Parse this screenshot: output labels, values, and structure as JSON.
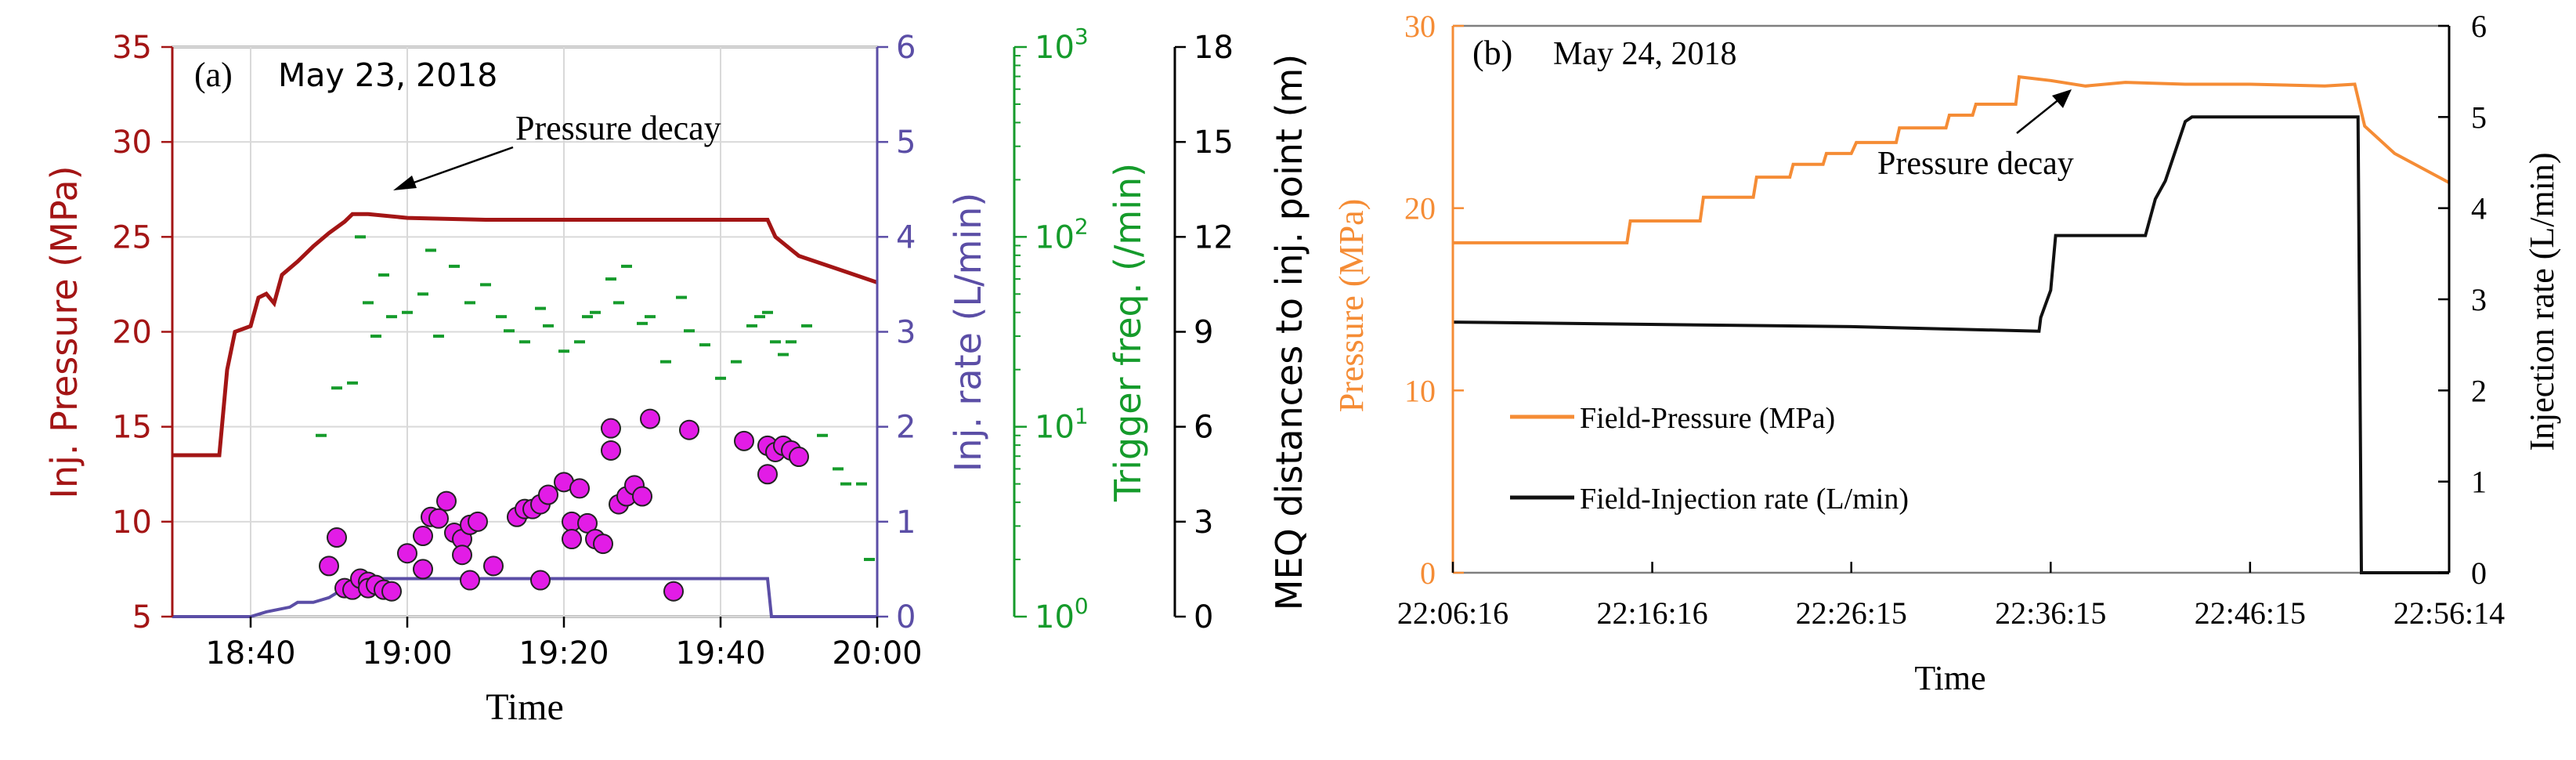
{
  "figure": {
    "panel_a": {
      "panel_label": "(a)",
      "date": "May 23, 2018",
      "annotation": "Pressure decay"
    },
    "panel_b": {
      "panel_label": "(b)",
      "date": "May 24, 2018",
      "annotation": "Pressure decay"
    }
  },
  "colors": {
    "pressure_a": "#a31515",
    "injection_a": "#5b4ea6",
    "trigger": "#159b2b",
    "meq_fill": "#e21ce6",
    "pressure_b": "#f58c35",
    "injection_b": "#111111"
  },
  "chart_data": [
    {
      "type": "line",
      "panel": "a",
      "xlabel": "Time",
      "x_ticks": [
        "18:40",
        "19:00",
        "19:20",
        "19:40",
        "20:00"
      ],
      "x_range_minutes": [
        "18:30",
        "20:00"
      ],
      "axes": [
        {
          "label": "Inj. Pressure (MPa)",
          "ylim": [
            5,
            35
          ],
          "ticks": [
            5,
            10,
            15,
            20,
            25,
            30,
            35
          ]
        },
        {
          "label": "Inj. rate (L/min)",
          "ylim": [
            0,
            6
          ],
          "ticks": [
            0,
            1,
            2,
            3,
            4,
            5,
            6
          ]
        },
        {
          "label": "Trigger freq. (/min)",
          "scale": "log",
          "ylim": [
            1,
            1000
          ],
          "ticks": [
            "10^0",
            "10^1",
            "10^2",
            "10^3"
          ]
        },
        {
          "label": "MEQ distances to inj. point (m)",
          "ylim": [
            0,
            18
          ],
          "ticks": [
            0,
            3,
            6,
            9,
            12,
            15,
            18
          ]
        }
      ],
      "series": [
        {
          "name": "Inj. Pressure",
          "points": [
            [
              "18:30",
              13.5
            ],
            [
              "18:36",
              13.5
            ],
            [
              "18:37",
              18
            ],
            [
              "18:38",
              20
            ],
            [
              "18:40",
              20.3
            ],
            [
              "18:41",
              21.8
            ],
            [
              "18:42",
              22
            ],
            [
              "18:43",
              21.5
            ],
            [
              "18:44",
              23
            ],
            [
              "18:46",
              23.7
            ],
            [
              "18:48",
              24.5
            ],
            [
              "18:50",
              25.2
            ],
            [
              "18:52",
              25.8
            ],
            [
              "18:53",
              26.2
            ],
            [
              "18:55",
              26.2
            ],
            [
              "19:00",
              26.0
            ],
            [
              "19:10",
              25.9
            ],
            [
              "19:20",
              25.9
            ],
            [
              "19:30",
              25.9
            ],
            [
              "19:40",
              25.9
            ],
            [
              "19:46",
              25.9
            ],
            [
              "19:47",
              25.0
            ],
            [
              "19:50",
              24.0
            ],
            [
              "19:55",
              23.3
            ],
            [
              "20:00",
              22.6
            ]
          ]
        },
        {
          "name": "Inj. rate",
          "points": [
            [
              "18:30",
              0
            ],
            [
              "18:40",
              0
            ],
            [
              "18:42",
              0.05
            ],
            [
              "18:45",
              0.1
            ],
            [
              "18:46",
              0.15
            ],
            [
              "18:48",
              0.15
            ],
            [
              "18:50",
              0.2
            ],
            [
              "18:52",
              0.3
            ],
            [
              "18:55",
              0.4
            ],
            [
              "19:46",
              0.4
            ],
            [
              "19:46.5",
              0
            ],
            [
              "20:00",
              0
            ]
          ]
        }
      ],
      "trigger_freq": [
        [
          "18:49",
          9
        ],
        [
          "18:51",
          16
        ],
        [
          "18:53",
          17
        ],
        [
          "18:54",
          100
        ],
        [
          "18:55",
          45
        ],
        [
          "18:56",
          30
        ],
        [
          "18:57",
          63
        ],
        [
          "18:58",
          38
        ],
        [
          "19:00",
          40
        ],
        [
          "19:02",
          50
        ],
        [
          "19:03",
          85
        ],
        [
          "19:04",
          30
        ],
        [
          "19:06",
          70
        ],
        [
          "19:08",
          45
        ],
        [
          "19:10",
          56
        ],
        [
          "19:12",
          38
        ],
        [
          "19:13",
          32
        ],
        [
          "19:15",
          28
        ],
        [
          "19:17",
          42
        ],
        [
          "19:18",
          34
        ],
        [
          "19:20",
          25
        ],
        [
          "19:22",
          28
        ],
        [
          "19:23",
          38
        ],
        [
          "19:24",
          40
        ],
        [
          "19:26",
          60
        ],
        [
          "19:27",
          45
        ],
        [
          "19:28",
          70
        ],
        [
          "19:30",
          35
        ],
        [
          "19:31",
          38
        ],
        [
          "19:33",
          22
        ],
        [
          "19:35",
          48
        ],
        [
          "19:36",
          32
        ],
        [
          "19:38",
          27
        ],
        [
          "19:40",
          18
        ],
        [
          "19:42",
          22
        ],
        [
          "19:44",
          34
        ],
        [
          "19:45",
          38
        ],
        [
          "19:46",
          40
        ],
        [
          "19:47",
          28
        ],
        [
          "19:48",
          24
        ],
        [
          "19:49",
          28
        ],
        [
          "19:51",
          34
        ],
        [
          "19:53",
          9
        ],
        [
          "19:55",
          6
        ],
        [
          "19:56",
          5
        ],
        [
          "19:58",
          5
        ],
        [
          "19:59",
          2
        ]
      ],
      "meq_distance": [
        [
          "18:50",
          1.6
        ],
        [
          "18:52",
          0.9
        ],
        [
          "18:53",
          0.85
        ],
        [
          "18:54",
          1.2
        ],
        [
          "18:55",
          1.1
        ],
        [
          "18:55",
          0.9
        ],
        [
          "18:56",
          1.0
        ],
        [
          "18:57",
          0.85
        ],
        [
          "18:58",
          0.8
        ],
        [
          "19:00",
          2.0
        ],
        [
          "19:02",
          2.55
        ],
        [
          "19:02",
          1.5
        ],
        [
          "19:03",
          3.15
        ],
        [
          "19:04",
          3.1
        ],
        [
          "19:05",
          3.65
        ],
        [
          "19:06",
          2.65
        ],
        [
          "19:07",
          2.45
        ],
        [
          "19:08",
          2.9
        ],
        [
          "19:09",
          3.0
        ],
        [
          "19:11",
          1.6
        ],
        [
          "19:14",
          3.15
        ],
        [
          "19:15",
          3.4
        ],
        [
          "19:16",
          3.4
        ],
        [
          "19:17",
          3.55
        ],
        [
          "19:18",
          3.85
        ],
        [
          "19:20",
          4.25
        ],
        [
          "19:21",
          3.0
        ],
        [
          "19:21",
          2.45
        ],
        [
          "19:22",
          4.05
        ],
        [
          "19:23",
          2.95
        ],
        [
          "19:24",
          2.45
        ],
        [
          "19:26",
          5.95
        ],
        [
          "19:26",
          5.25
        ],
        [
          "19:27",
          3.55
        ],
        [
          "19:28",
          3.8
        ],
        [
          "19:29",
          4.15
        ],
        [
          "19:30",
          3.8
        ],
        [
          "19:31",
          6.25
        ],
        [
          "19:34",
          0.8
        ],
        [
          "19:36",
          5.9
        ],
        [
          "19:43",
          5.55
        ],
        [
          "19:46",
          5.4
        ],
        [
          "19:47",
          5.2
        ],
        [
          "19:48",
          5.4
        ],
        [
          "19:49",
          5.25
        ],
        [
          "19:50",
          5.05
        ],
        [
          "19:46",
          4.5
        ],
        [
          "18:51",
          2.5
        ],
        [
          "19:25",
          2.3
        ],
        [
          "19:08",
          1.15
        ],
        [
          "19:17",
          1.15
        ],
        [
          "19:07",
          1.95
        ]
      ]
    },
    {
      "type": "line",
      "panel": "b",
      "xlabel": "Time",
      "x_ticks": [
        "22:06:16",
        "22:16:16",
        "22:26:15",
        "22:36:15",
        "22:46:15",
        "22:56:14"
      ],
      "axes": [
        {
          "label": "Pressure (MPa)",
          "ylim": [
            0,
            30
          ],
          "ticks": [
            0,
            10,
            20,
            30
          ]
        },
        {
          "label": "Injection rate (L/min)",
          "ylim": [
            0,
            6
          ],
          "ticks": [
            0,
            1,
            2,
            3,
            4,
            5,
            6
          ]
        }
      ],
      "legend": {
        "placement": "middle-left"
      },
      "series": [
        {
          "name": "Field-Pressure (MPa)",
          "points": [
            [
              "22:06:16",
              18.1
            ],
            [
              "22:15:00",
              18.1
            ],
            [
              "22:15:10",
              19.3
            ],
            [
              "22:18:40",
              19.3
            ],
            [
              "22:18:50",
              20.6
            ],
            [
              "22:21:20",
              20.6
            ],
            [
              "22:21:30",
              21.7
            ],
            [
              "22:23:10",
              21.7
            ],
            [
              "22:23:20",
              22.4
            ],
            [
              "22:24:50",
              22.4
            ],
            [
              "22:25:00",
              23.0
            ],
            [
              "22:26:15",
              23.0
            ],
            [
              "22:26:30",
              23.6
            ],
            [
              "22:28:30",
              23.6
            ],
            [
              "22:28:40",
              24.4
            ],
            [
              "22:31:00",
              24.4
            ],
            [
              "22:31:10",
              25.1
            ],
            [
              "22:32:20",
              25.1
            ],
            [
              "22:32:30",
              25.7
            ],
            [
              "22:34:30",
              25.7
            ],
            [
              "22:34:40",
              27.2
            ],
            [
              "22:36:15",
              27.0
            ],
            [
              "22:38:00",
              26.7
            ],
            [
              "22:40:00",
              26.9
            ],
            [
              "22:43:00",
              26.8
            ],
            [
              "22:46:15",
              26.8
            ],
            [
              "22:50:00",
              26.7
            ],
            [
              "22:51:30",
              26.8
            ],
            [
              "22:52:00",
              24.5
            ],
            [
              "22:53:30",
              23.0
            ],
            [
              "22:56:14",
              21.4
            ]
          ]
        },
        {
          "name": "Field-Injection rate (L/min)",
          "points": [
            [
              "22:06:16",
              2.75
            ],
            [
              "22:26:15",
              2.7
            ],
            [
              "22:35:40",
              2.65
            ],
            [
              "22:35:45",
              2.8
            ],
            [
              "22:36:15",
              3.1
            ],
            [
              "22:36:30",
              3.7
            ],
            [
              "22:41:00",
              3.7
            ],
            [
              "22:41:30",
              4.1
            ],
            [
              "22:42:00",
              4.3
            ],
            [
              "22:43:00",
              4.95
            ],
            [
              "22:43:20",
              5.0
            ],
            [
              "22:51:40",
              5.0
            ],
            [
              "22:51:50",
              0.0
            ],
            [
              "22:56:14",
              0.0
            ]
          ]
        }
      ]
    }
  ]
}
